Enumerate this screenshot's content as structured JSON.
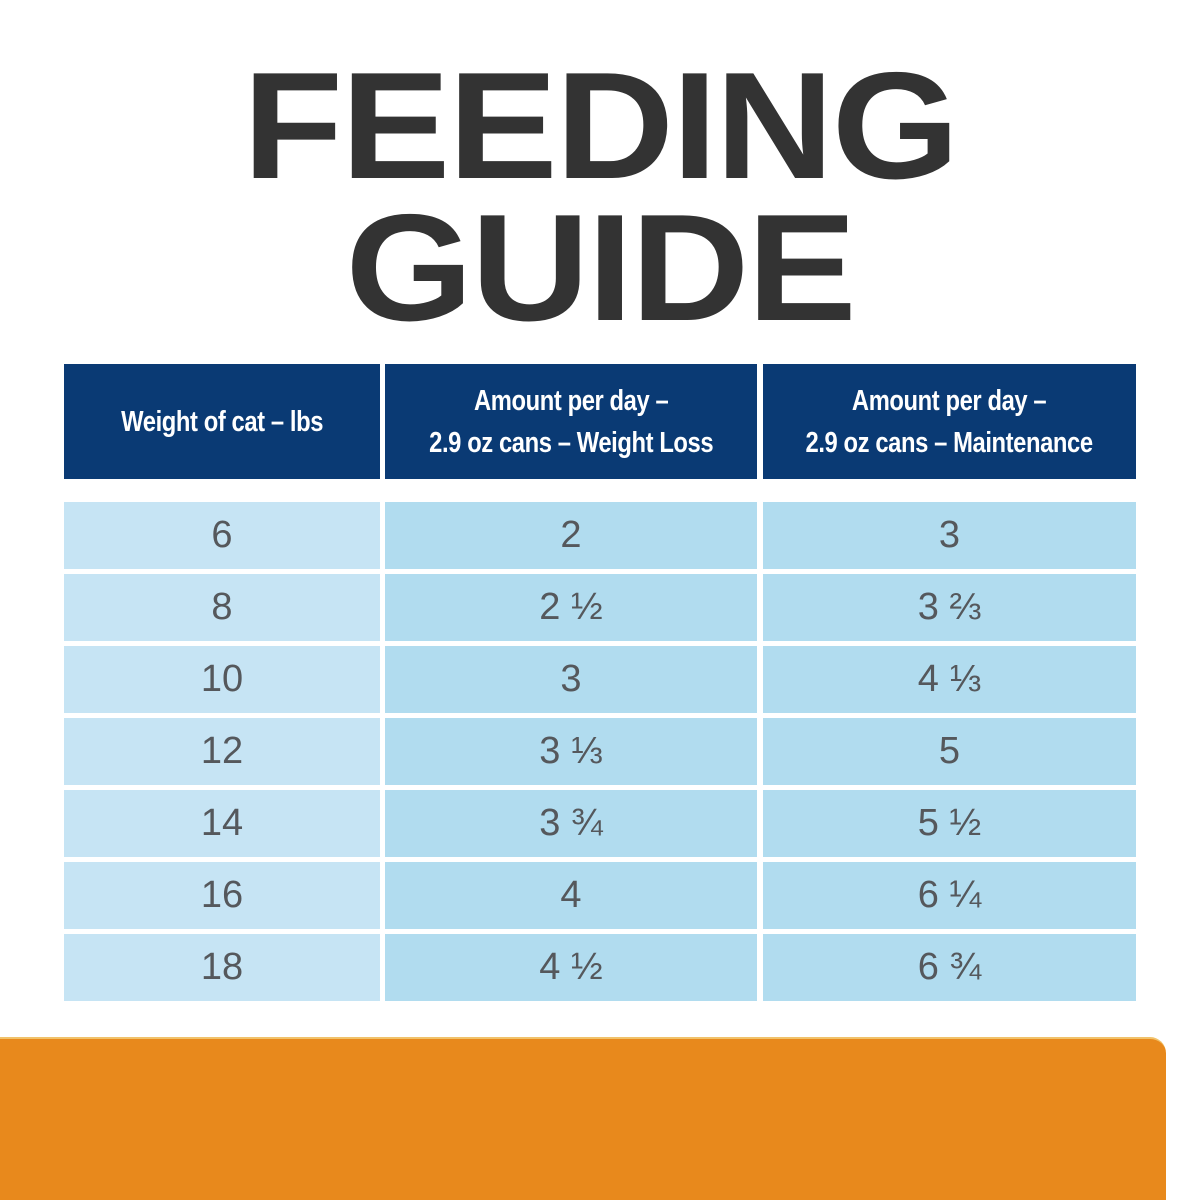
{
  "title": {
    "line1": "FEEDING",
    "line2": "GUIDE"
  },
  "table": {
    "headers": [
      "Weight of cat – lbs",
      "Amount per day –\n2.9 oz cans – Weight Loss",
      "Amount per day –\n2.9 oz cans – Maintenance"
    ],
    "header_lines": [
      [
        "Weight of cat – lbs"
      ],
      [
        "Amount per day –",
        "2.9 oz cans – Weight Loss"
      ],
      [
        "Amount per day –",
        "2.9 oz cans – Maintenance"
      ]
    ],
    "rows": [
      [
        "6",
        "2",
        "3"
      ],
      [
        "8",
        "2 ½",
        "3 ⅔"
      ],
      [
        "10",
        "3",
        "4 ⅓"
      ],
      [
        "12",
        "3 ⅓",
        "5"
      ],
      [
        "14",
        "3 ¾",
        "5 ½"
      ],
      [
        "16",
        "4",
        "6 ¼"
      ],
      [
        "18",
        "4 ½",
        "6 ¾"
      ]
    ]
  },
  "colors": {
    "title": "#333333",
    "header_bg": "#0a3a74",
    "first_col_bg": "#c6e4f4",
    "other_col_bg": "#b1dcef",
    "cell_text": "#55585c",
    "footer_band": "#e8891c"
  }
}
